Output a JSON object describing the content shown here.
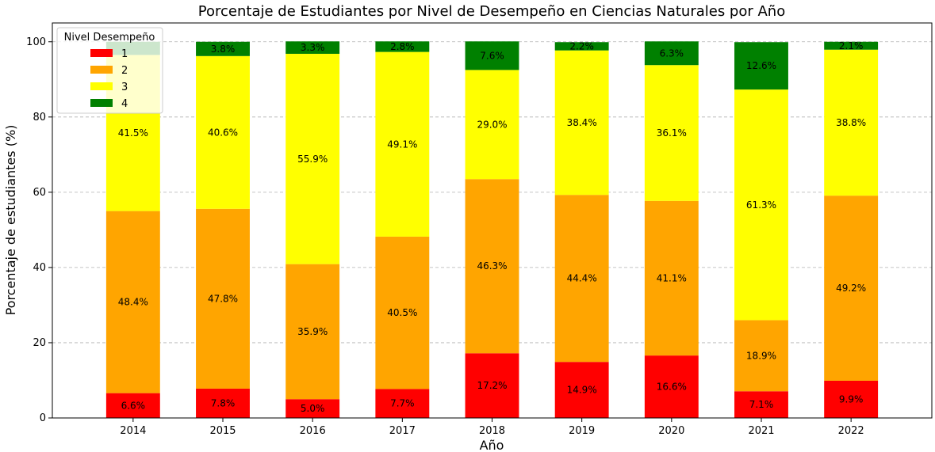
{
  "chart_data": {
    "type": "bar",
    "stacked": true,
    "title": "Porcentaje de Estudiantes por Nivel de Desempeño en Ciencias Naturales por Año",
    "xlabel": "Año",
    "ylabel": "Porcentaje de estudiantes (%)",
    "ylim": [
      0,
      105
    ],
    "yticks": [
      "0",
      "20",
      "40",
      "60",
      "80",
      "100"
    ],
    "grid": "horizontal dashed",
    "legend_title": "Nivel Desempeño",
    "legend_position": "top-left",
    "categories": [
      "2014",
      "2015",
      "2016",
      "2017",
      "2018",
      "2019",
      "2020",
      "2021",
      "2022"
    ],
    "series": [
      {
        "name": "1",
        "color": "#ff0000",
        "values": [
          6.6,
          7.8,
          5.0,
          7.7,
          17.2,
          14.9,
          16.6,
          7.1,
          9.9
        ],
        "labels": [
          "6.6%",
          "7.8%",
          "5.0%",
          "7.7%",
          "17.2%",
          "14.9%",
          "16.6%",
          "7.1%",
          "9.9%"
        ]
      },
      {
        "name": "2",
        "color": "#ffa500",
        "values": [
          48.4,
          47.8,
          35.9,
          40.5,
          46.3,
          44.4,
          41.1,
          18.9,
          49.2
        ],
        "labels": [
          "48.4%",
          "47.8%",
          "35.9%",
          "40.5%",
          "46.3%",
          "44.4%",
          "41.1%",
          "18.9%",
          "49.2%"
        ]
      },
      {
        "name": "3",
        "color": "#ffff00",
        "values": [
          41.5,
          40.6,
          55.9,
          49.1,
          29.0,
          38.4,
          36.1,
          61.3,
          38.8
        ],
        "labels": [
          "41.5%",
          "40.6%",
          "55.9%",
          "49.1%",
          "29.0%",
          "38.4%",
          "36.1%",
          "61.3%",
          "38.8%"
        ]
      },
      {
        "name": "4",
        "color": "#008000",
        "values": [
          3.5,
          3.8,
          3.3,
          2.8,
          7.6,
          2.2,
          6.3,
          12.6,
          2.1
        ],
        "labels": [
          "",
          "3.8%",
          "3.3%",
          "2.8%",
          "7.6%",
          "2.2%",
          "6.3%",
          "12.6%",
          "2.1%"
        ]
      }
    ]
  }
}
